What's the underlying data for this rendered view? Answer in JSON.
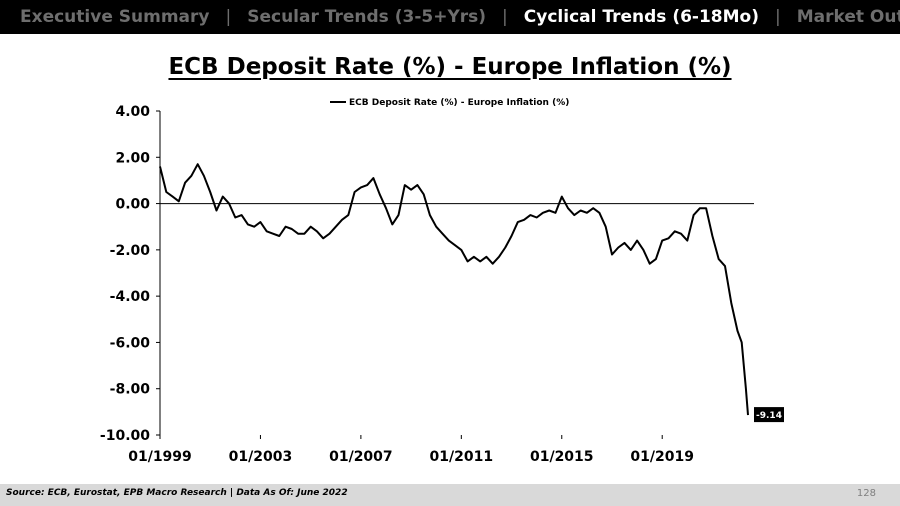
{
  "nav": {
    "tabs": [
      {
        "label": "Executive Summary",
        "active": false
      },
      {
        "label": "Secular Trends (3-5+Yrs)",
        "active": false
      },
      {
        "label": "Cyclical Trends (6-18Mo)",
        "active": true
      },
      {
        "label": "Market Outlook",
        "active": false
      }
    ],
    "separator": "|"
  },
  "footer": {
    "source": "Source: ECB, Eurostat, EPB Macro Research   |   Data As Of: June 2022",
    "page_number": "128"
  },
  "chart_data": {
    "type": "line",
    "title": "ECB Deposit Rate (%) - Europe Inflation (%)",
    "xlabel": "",
    "ylabel": "",
    "legend": "top-center",
    "grid": false,
    "ylim": [
      -10,
      4
    ],
    "y_ticks": [
      "4.00",
      "2.00",
      "0.00",
      "-2.00",
      "-4.00",
      "-6.00",
      "-8.00",
      "-10.00"
    ],
    "x_ticks": [
      "01/1999",
      "01/2003",
      "01/2007",
      "01/2011",
      "01/2015",
      "01/2019"
    ],
    "x_range": [
      "1999-01",
      "2022-06"
    ],
    "last_value_label": "-9.14",
    "colors": {
      "line": "#000000",
      "last_label_bg": "#000000"
    },
    "series": [
      {
        "name": "ECB Deposit Rate (%) - Europe Inflation (%)",
        "x": [
          "1999-01",
          "1999-04",
          "1999-07",
          "1999-10",
          "2000-01",
          "2000-04",
          "2000-07",
          "2000-10",
          "2001-01",
          "2001-04",
          "2001-07",
          "2001-10",
          "2002-01",
          "2002-04",
          "2002-07",
          "2002-10",
          "2003-01",
          "2003-04",
          "2003-07",
          "2003-10",
          "2004-01",
          "2004-04",
          "2004-07",
          "2004-10",
          "2005-01",
          "2005-04",
          "2005-07",
          "2005-10",
          "2006-01",
          "2006-04",
          "2006-07",
          "2006-10",
          "2007-01",
          "2007-04",
          "2007-07",
          "2007-10",
          "2008-01",
          "2008-04",
          "2008-07",
          "2008-10",
          "2009-01",
          "2009-04",
          "2009-07",
          "2009-10",
          "2010-01",
          "2010-04",
          "2010-07",
          "2010-10",
          "2011-01",
          "2011-04",
          "2011-07",
          "2011-10",
          "2012-01",
          "2012-04",
          "2012-07",
          "2012-10",
          "2013-01",
          "2013-04",
          "2013-07",
          "2013-10",
          "2014-01",
          "2014-04",
          "2014-07",
          "2014-10",
          "2015-01",
          "2015-04",
          "2015-07",
          "2015-10",
          "2016-01",
          "2016-04",
          "2016-07",
          "2016-10",
          "2017-01",
          "2017-04",
          "2017-07",
          "2017-10",
          "2018-01",
          "2018-04",
          "2018-07",
          "2018-10",
          "2019-01",
          "2019-04",
          "2019-07",
          "2019-10",
          "2020-01",
          "2020-04",
          "2020-07",
          "2020-10",
          "2021-01",
          "2021-04",
          "2021-07",
          "2021-10",
          "2022-01",
          "2022-03",
          "2022-05",
          "2022-06"
        ],
        "values": [
          1.6,
          0.5,
          0.3,
          0.1,
          0.9,
          1.2,
          1.7,
          1.2,
          0.5,
          -0.3,
          0.3,
          0.0,
          -0.6,
          -0.5,
          -0.9,
          -1.0,
          -0.8,
          -1.2,
          -1.3,
          -1.4,
          -1.0,
          -1.1,
          -1.3,
          -1.3,
          -1.0,
          -1.2,
          -1.5,
          -1.3,
          -1.0,
          -0.7,
          -0.5,
          0.5,
          0.7,
          0.8,
          1.1,
          0.4,
          -0.2,
          -0.9,
          -0.5,
          0.8,
          0.6,
          0.8,
          0.4,
          -0.5,
          -1.0,
          -1.3,
          -1.6,
          -1.8,
          -2.0,
          -2.5,
          -2.3,
          -2.5,
          -2.3,
          -2.6,
          -2.3,
          -1.9,
          -1.4,
          -0.8,
          -0.7,
          -0.5,
          -0.6,
          -0.4,
          -0.3,
          -0.4,
          0.3,
          -0.2,
          -0.5,
          -0.3,
          -0.4,
          -0.2,
          -0.4,
          -1.0,
          -2.2,
          -1.9,
          -1.7,
          -2.0,
          -1.6,
          -2.0,
          -2.6,
          -2.4,
          -1.6,
          -1.5,
          -1.2,
          -1.3,
          -1.6,
          -0.5,
          -0.2,
          -0.2,
          -1.4,
          -2.4,
          -2.7,
          -4.3,
          -5.5,
          -6.0,
          -8.0,
          -9.14
        ]
      }
    ]
  }
}
